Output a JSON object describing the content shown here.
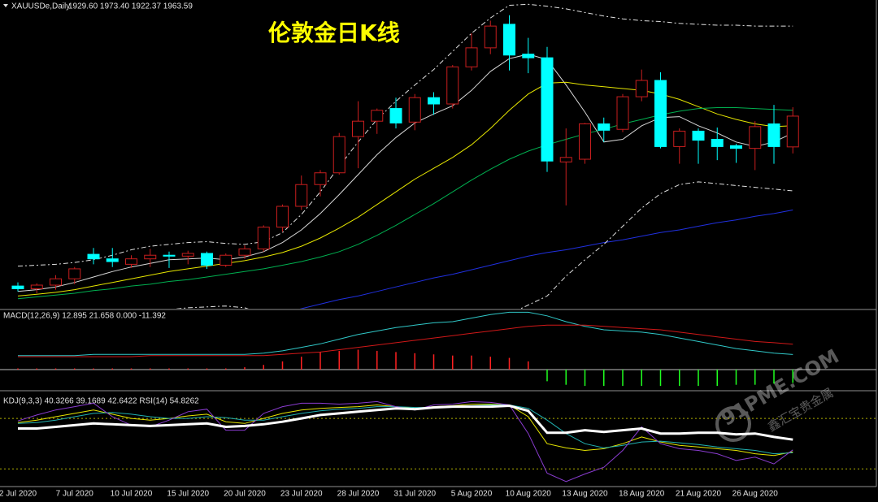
{
  "chart_data": [
    {
      "type": "candlestick",
      "title": "伦敦金日K线",
      "symbol": "XAUUSDe,Daily",
      "ohlc_text": "1929.60 1973.40 1922.37 1963.59",
      "categories": [
        "2 Jul 2020",
        null,
        null,
        "7 Jul 2020",
        null,
        null,
        "10 Jul 2020",
        null,
        null,
        "15 Jul 2020",
        null,
        null,
        "20 Jul 2020",
        null,
        null,
        "23 Jul 2020",
        null,
        null,
        "28 Jul 2020",
        null,
        null,
        "31 Jul 2020",
        null,
        null,
        "5 Aug 2020",
        null,
        null,
        "10 Aug 2020",
        null,
        null,
        "13 Aug 2020",
        null,
        null,
        "18 Aug 2020",
        null,
        null,
        "21 Aug 2020",
        null,
        null,
        "26 Aug 2020",
        null,
        null
      ],
      "open": [
        1776,
        1773,
        1777,
        1784,
        1811,
        1806,
        1800,
        1806,
        1810,
        1809,
        1812,
        1799,
        1810,
        1817,
        1841,
        1864,
        1888,
        1901,
        1941,
        1958,
        1972,
        1957,
        1984,
        1977,
        2018,
        2039,
        2065,
        2032,
        2028,
        1913,
        1916,
        1955,
        1949,
        1985,
        2003,
        1930,
        1947,
        1938,
        1931,
        1928,
        1955,
        1929.6
      ],
      "high": [
        1780,
        1779,
        1788,
        1797,
        1818,
        1818,
        1810,
        1817,
        1814,
        1815,
        1814,
        1812,
        1821,
        1843,
        1866,
        1898,
        1904,
        1945,
        1980,
        1972,
        1984,
        1988,
        1990,
        2020,
        2055,
        2069,
        2075,
        2050,
        2040,
        1950,
        1956,
        1962,
        1988,
        2015,
        2012,
        1950,
        1950,
        1951,
        1933,
        1958,
        1976,
        1973.4
      ],
      "low": [
        1770,
        1768,
        1772,
        1778,
        1800,
        1797,
        1796,
        1797,
        1796,
        1800,
        1795,
        1797,
        1806,
        1814,
        1836,
        1860,
        1875,
        1899,
        1906,
        1944,
        1950,
        1948,
        1965,
        1972,
        2014,
        2032,
        2014,
        2011,
        1902,
        1865,
        1911,
        1935,
        1946,
        1980,
        1928,
        1911,
        1911,
        1915,
        1912,
        1904,
        1911,
        1922.37
      ],
      "close": [
        1773,
        1777,
        1784,
        1795,
        1806,
        1803,
        1806,
        1810,
        1809,
        1812,
        1799,
        1810,
        1817,
        1841,
        1864,
        1888,
        1901,
        1941,
        1958,
        1970,
        1956,
        1984,
        1977,
        2018,
        2039,
        2063,
        2031,
        2028,
        1914,
        1918,
        1955,
        1948,
        1985,
        2003,
        1930,
        1947,
        1937,
        1930,
        1928,
        1952,
        1930,
        1963.59
      ],
      "bull_color": "#c81e1e",
      "bear_color": "#00ffff",
      "title_color": "#ffff00",
      "ylim": [
        1751,
        2090
      ],
      "overlays": [
        {
          "color": "#d8d8d8",
          "values": [
            1770,
            1772,
            1775,
            1780,
            1786,
            1792,
            1797,
            1801,
            1805,
            1806,
            1807,
            1805,
            1808,
            1814,
            1824,
            1838,
            1856,
            1877,
            1899,
            1921,
            1940,
            1956,
            1966,
            1975,
            1992,
            2013,
            2027,
            2032,
            2026,
            1998,
            1968,
            1935,
            1938,
            1953,
            1962,
            1963,
            1953,
            1945,
            1935,
            1930,
            1935,
            1945
          ]
        },
        {
          "color": "#e6e600",
          "values": [
            1765,
            1767,
            1769,
            1772,
            1776,
            1780,
            1784,
            1788,
            1792,
            1795,
            1798,
            1801,
            1804,
            1808,
            1813,
            1820,
            1829,
            1840,
            1852,
            1866,
            1880,
            1894,
            1906,
            1918,
            1932,
            1950,
            1970,
            1988,
            2000,
            2001,
            1998,
            1996,
            1994,
            1992,
            1988,
            1982,
            1974,
            1966,
            1960,
            1955,
            1952,
            1953
          ]
        },
        {
          "color": "#00b050",
          "values": [
            1762,
            1764,
            1766,
            1768,
            1771,
            1773,
            1776,
            1778,
            1781,
            1783,
            1786,
            1789,
            1792,
            1795,
            1799,
            1803,
            1808,
            1814,
            1822,
            1832,
            1843,
            1855,
            1867,
            1880,
            1893,
            1905,
            1916,
            1925,
            1932,
            1938,
            1944,
            1949,
            1955,
            1960,
            1965,
            1969,
            1972,
            1973,
            1973,
            1972,
            1971,
            1970
          ]
        },
        {
          "color": "#2030e0",
          "values": [
            1679,
            1684,
            1689,
            1693,
            1698,
            1703,
            1708,
            1713,
            1717,
            1722,
            1727,
            1732,
            1737,
            1741,
            1746,
            1751,
            1756,
            1761,
            1765,
            1770,
            1775,
            1780,
            1785,
            1789,
            1794,
            1799,
            1804,
            1809,
            1813,
            1816,
            1820,
            1824,
            1827,
            1831,
            1835,
            1838,
            1842,
            1846,
            1849,
            1853,
            1856,
            1860
          ]
        },
        {
          "color": "#e0e0e0",
          "dash": true,
          "values": [
            1798,
            1799,
            1800,
            1802,
            1805,
            1810,
            1816,
            1820,
            1822,
            1824,
            1825,
            1823,
            1822,
            1825,
            1835,
            1855,
            1880,
            1908,
            1935,
            1960,
            1980,
            1998,
            2015,
            2035,
            2055,
            2072,
            2086,
            2087,
            2085,
            2082,
            2078,
            2074,
            2071,
            2069,
            2068,
            2066,
            2065,
            2064,
            2064,
            2063,
            2063,
            2063
          ]
        },
        {
          "color": "#e0e0e0",
          "dash": true,
          "values": [
            1735,
            1737,
            1739,
            1741,
            1743,
            1745,
            1747,
            1749,
            1750,
            1752,
            1753,
            1754,
            1752,
            1745,
            1730,
            1718,
            1705,
            1695,
            1690,
            1688,
            1690,
            1695,
            1702,
            1712,
            1722,
            1733,
            1745,
            1755,
            1765,
            1787,
            1805,
            1822,
            1842,
            1862,
            1878,
            1888,
            1891,
            1889,
            1887,
            1885,
            1883,
            1881
          ]
        }
      ]
    },
    {
      "type": "macd",
      "label": "MACD(12,26,9) 12.895 21.658 0.000 -11.392",
      "ylim": [
        -16,
        50
      ],
      "levels": [
        0
      ],
      "lines": [
        {
          "color": "#30c8c8",
          "values": [
            12,
            12,
            12,
            12,
            13,
            13,
            13,
            13,
            13,
            13,
            13,
            13,
            13,
            14,
            16,
            19,
            22,
            26,
            30,
            33,
            36,
            38,
            40,
            41,
            44,
            47,
            49,
            49,
            46,
            41,
            37,
            34,
            33,
            32,
            30,
            27,
            24,
            21,
            18,
            16,
            14,
            12.895
          ]
        },
        {
          "color": "#d01818",
          "values": [
            11,
            11,
            11,
            11,
            11,
            11,
            11,
            12,
            12,
            12,
            12,
            12,
            12,
            12,
            13,
            14,
            15,
            17,
            19,
            21,
            23,
            25,
            27,
            29,
            31,
            33,
            35,
            37,
            38,
            38,
            38,
            37,
            36,
            35,
            34,
            32,
            30,
            28,
            26,
            24,
            23,
            21.658
          ]
        }
      ],
      "histogram": {
        "pos_color": "#ff2020",
        "neg_color": "#20ff20",
        "values": [
          1,
          1,
          1,
          1,
          1,
          1,
          1,
          1,
          1,
          1,
          1,
          1,
          2,
          4,
          7,
          11,
          15,
          16,
          17,
          16,
          15,
          14,
          13,
          12,
          12,
          11,
          10,
          7,
          -10,
          -13,
          -14,
          -14,
          -14,
          -14,
          -14,
          -14,
          -14,
          -14,
          -13,
          -13,
          -12,
          -11.392
        ]
      }
    },
    {
      "type": "kdj",
      "label": "KDJ(9,3,3) 40.3266 39.1689 42.6422 RSI(14) 54.8262",
      "ylim": [
        0,
        110
      ],
      "levels": [
        20,
        80
      ],
      "series": [
        {
          "color": "#e6e600",
          "values": [
            75,
            78,
            82,
            86,
            90,
            85,
            80,
            78,
            80,
            83,
            85,
            76,
            74,
            80,
            86,
            90,
            92,
            93,
            94,
            96,
            94,
            92,
            94,
            95,
            97,
            97,
            96,
            82,
            50,
            45,
            42,
            44,
            50,
            58,
            52,
            48,
            46,
            44,
            42,
            38,
            36,
            40.3266
          ]
        },
        {
          "color": "#20b0b0",
          "values": [
            74,
            75,
            78,
            82,
            86,
            87,
            85,
            82,
            80,
            80,
            82,
            81,
            78,
            78,
            82,
            86,
            89,
            91,
            92,
            94,
            94,
            93,
            93,
            94,
            95,
            96,
            96,
            92,
            78,
            62,
            50,
            45,
            48,
            52,
            53,
            51,
            49,
            46,
            44,
            42,
            38,
            39.1689
          ]
        },
        {
          "color": "#8a3cd0",
          "values": [
            77,
            84,
            90,
            94,
            98,
            82,
            72,
            70,
            78,
            88,
            91,
            66,
            66,
            86,
            94,
            98,
            98,
            97,
            98,
            100,
            94,
            90,
            96,
            97,
            100,
            99,
            96,
            62,
            15,
            5,
            14,
            22,
            42,
            70,
            50,
            44,
            42,
            38,
            30,
            34,
            26,
            42.6422
          ]
        },
        {
          "color": "#ffffff",
          "bold": true,
          "values": [
            68,
            68,
            70,
            72,
            74,
            73,
            72,
            71,
            72,
            73,
            74,
            70,
            71,
            73,
            76,
            80,
            84,
            86,
            88,
            90,
            92,
            91,
            93,
            94,
            94,
            94,
            95,
            89,
            63,
            63,
            66,
            64,
            66,
            68,
            62,
            62,
            63,
            63,
            61,
            62,
            58,
            54.8262
          ]
        }
      ]
    }
  ],
  "watermark": {
    "site": "91PME.COM",
    "name": "鑫汇宝贵金属"
  }
}
